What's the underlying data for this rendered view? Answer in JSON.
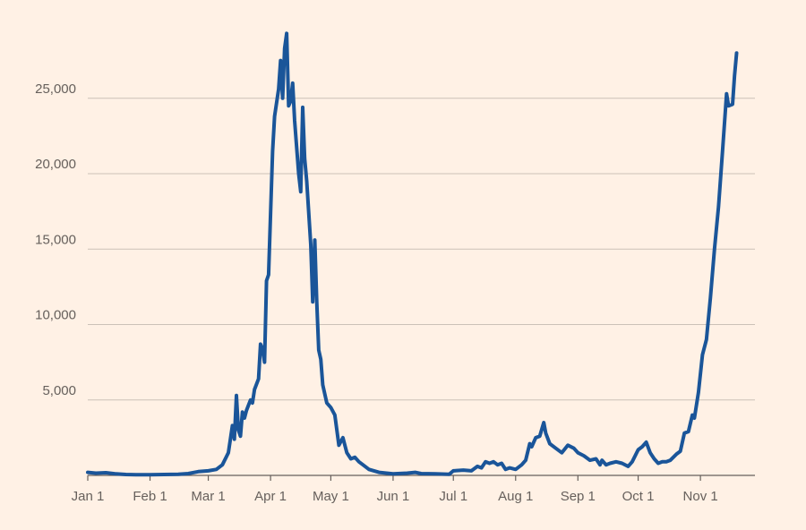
{
  "chart_data": {
    "type": "line",
    "title": "",
    "xlabel": "",
    "ylabel": "",
    "ylim": [
      0,
      30000
    ],
    "grid": true,
    "colors": {
      "background": "#fff1e5",
      "line": "#1a5599"
    },
    "yticks": [
      {
        "value": 5000,
        "label": "5,000"
      },
      {
        "value": 10000,
        "label": "10,000"
      },
      {
        "value": 15000,
        "label": "15,000"
      },
      {
        "value": 20000,
        "label": "20,000"
      },
      {
        "value": 25000,
        "label": "25,000"
      }
    ],
    "xticks": [
      {
        "date": "2020-01-01",
        "label": "Jan 1"
      },
      {
        "date": "2020-02-01",
        "label": "Feb 1"
      },
      {
        "date": "2020-03-01",
        "label": "Mar 1"
      },
      {
        "date": "2020-04-01",
        "label": "Apr 1"
      },
      {
        "date": "2020-05-01",
        "label": "May 1"
      },
      {
        "date": "2020-06-01",
        "label": "Jun 1"
      },
      {
        "date": "2020-07-01",
        "label": "Jul 1"
      },
      {
        "date": "2020-08-01",
        "label": "Aug 1"
      },
      {
        "date": "2020-09-01",
        "label": "Sep 1"
      },
      {
        "date": "2020-10-01",
        "label": "Oct 1"
      },
      {
        "date": "2020-11-01",
        "label": "Nov 1"
      }
    ],
    "xrange": [
      "2020-01-01",
      "2020-11-20"
    ],
    "series": [
      {
        "points": [
          [
            "2020-01-01",
            200
          ],
          [
            "2020-01-05",
            150
          ],
          [
            "2020-01-10",
            180
          ],
          [
            "2020-01-15",
            100
          ],
          [
            "2020-01-20",
            60
          ],
          [
            "2020-01-25",
            50
          ],
          [
            "2020-02-01",
            50
          ],
          [
            "2020-02-08",
            60
          ],
          [
            "2020-02-15",
            80
          ],
          [
            "2020-02-20",
            120
          ],
          [
            "2020-02-25",
            250
          ],
          [
            "2020-03-01",
            300
          ],
          [
            "2020-03-05",
            400
          ],
          [
            "2020-03-08",
            700
          ],
          [
            "2020-03-11",
            1500
          ],
          [
            "2020-03-13",
            3300
          ],
          [
            "2020-03-14",
            2400
          ],
          [
            "2020-03-15",
            5300
          ],
          [
            "2020-03-16",
            3000
          ],
          [
            "2020-03-17",
            2600
          ],
          [
            "2020-03-18",
            4200
          ],
          [
            "2020-03-19",
            3800
          ],
          [
            "2020-03-20",
            4300
          ],
          [
            "2020-03-22",
            5000
          ],
          [
            "2020-03-23",
            4800
          ],
          [
            "2020-03-24",
            5700
          ],
          [
            "2020-03-26",
            6400
          ],
          [
            "2020-03-27",
            8700
          ],
          [
            "2020-03-28",
            8400
          ],
          [
            "2020-03-29",
            7500
          ],
          [
            "2020-03-30",
            12900
          ],
          [
            "2020-03-31",
            13300
          ],
          [
            "2020-04-02",
            21500
          ],
          [
            "2020-04-03",
            23800
          ],
          [
            "2020-04-05",
            25600
          ],
          [
            "2020-04-06",
            27500
          ],
          [
            "2020-04-07",
            25000
          ],
          [
            "2020-04-08",
            28300
          ],
          [
            "2020-04-09",
            29300
          ],
          [
            "2020-04-10",
            24500
          ],
          [
            "2020-04-11",
            24800
          ],
          [
            "2020-04-12",
            26000
          ],
          [
            "2020-04-13",
            23500
          ],
          [
            "2020-04-15",
            20000
          ],
          [
            "2020-04-16",
            18800
          ],
          [
            "2020-04-17",
            24400
          ],
          [
            "2020-04-18",
            21000
          ],
          [
            "2020-04-19",
            19500
          ],
          [
            "2020-04-21",
            15300
          ],
          [
            "2020-04-22",
            11500
          ],
          [
            "2020-04-23",
            15600
          ],
          [
            "2020-04-24",
            11500
          ],
          [
            "2020-04-25",
            8300
          ],
          [
            "2020-04-26",
            7700
          ],
          [
            "2020-04-27",
            6000
          ],
          [
            "2020-04-29",
            4800
          ],
          [
            "2020-05-01",
            4500
          ],
          [
            "2020-05-03",
            4000
          ],
          [
            "2020-05-05",
            2000
          ],
          [
            "2020-05-07",
            2500
          ],
          [
            "2020-05-09",
            1500
          ],
          [
            "2020-05-11",
            1100
          ],
          [
            "2020-05-13",
            1200
          ],
          [
            "2020-05-15",
            900
          ],
          [
            "2020-05-17",
            700
          ],
          [
            "2020-05-20",
            400
          ],
          [
            "2020-05-25",
            200
          ],
          [
            "2020-06-01",
            100
          ],
          [
            "2020-06-08",
            150
          ],
          [
            "2020-06-12",
            200
          ],
          [
            "2020-06-15",
            120
          ],
          [
            "2020-06-22",
            100
          ],
          [
            "2020-06-29",
            80
          ],
          [
            "2020-07-01",
            300
          ],
          [
            "2020-07-06",
            350
          ],
          [
            "2020-07-10",
            300
          ],
          [
            "2020-07-13",
            600
          ],
          [
            "2020-07-15",
            500
          ],
          [
            "2020-07-17",
            900
          ],
          [
            "2020-07-19",
            800
          ],
          [
            "2020-07-21",
            900
          ],
          [
            "2020-07-23",
            700
          ],
          [
            "2020-07-25",
            800
          ],
          [
            "2020-07-27",
            400
          ],
          [
            "2020-07-29",
            500
          ],
          [
            "2020-08-01",
            400
          ],
          [
            "2020-08-04",
            700
          ],
          [
            "2020-08-06",
            1000
          ],
          [
            "2020-08-08",
            2100
          ],
          [
            "2020-08-09",
            1900
          ],
          [
            "2020-08-11",
            2500
          ],
          [
            "2020-08-13",
            2600
          ],
          [
            "2020-08-15",
            3500
          ],
          [
            "2020-08-16",
            2800
          ],
          [
            "2020-08-18",
            2100
          ],
          [
            "2020-08-21",
            1800
          ],
          [
            "2020-08-24",
            1500
          ],
          [
            "2020-08-27",
            2000
          ],
          [
            "2020-08-30",
            1800
          ],
          [
            "2020-09-01",
            1500
          ],
          [
            "2020-09-04",
            1300
          ],
          [
            "2020-09-07",
            1000
          ],
          [
            "2020-09-10",
            1100
          ],
          [
            "2020-09-12",
            700
          ],
          [
            "2020-09-13",
            1000
          ],
          [
            "2020-09-15",
            700
          ],
          [
            "2020-09-17",
            800
          ],
          [
            "2020-09-20",
            900
          ],
          [
            "2020-09-23",
            800
          ],
          [
            "2020-09-26",
            600
          ],
          [
            "2020-09-28",
            900
          ],
          [
            "2020-10-01",
            1700
          ],
          [
            "2020-10-03",
            1900
          ],
          [
            "2020-10-05",
            2200
          ],
          [
            "2020-10-07",
            1500
          ],
          [
            "2020-10-09",
            1100
          ],
          [
            "2020-10-11",
            800
          ],
          [
            "2020-10-13",
            900
          ],
          [
            "2020-10-15",
            900
          ],
          [
            "2020-10-17",
            1000
          ],
          [
            "2020-10-20",
            1400
          ],
          [
            "2020-10-22",
            1600
          ],
          [
            "2020-10-24",
            2800
          ],
          [
            "2020-10-26",
            2900
          ],
          [
            "2020-10-28",
            4000
          ],
          [
            "2020-10-29",
            3800
          ],
          [
            "2020-10-31",
            5500
          ],
          [
            "2020-11-02",
            8000
          ],
          [
            "2020-11-04",
            9000
          ],
          [
            "2020-11-06",
            11800
          ],
          [
            "2020-11-08",
            15000
          ],
          [
            "2020-11-10",
            17800
          ],
          [
            "2020-11-12",
            21500
          ],
          [
            "2020-11-14",
            25300
          ],
          [
            "2020-11-15",
            24500
          ],
          [
            "2020-11-17",
            24600
          ],
          [
            "2020-11-18",
            26500
          ],
          [
            "2020-11-19",
            28000
          ]
        ]
      }
    ]
  }
}
